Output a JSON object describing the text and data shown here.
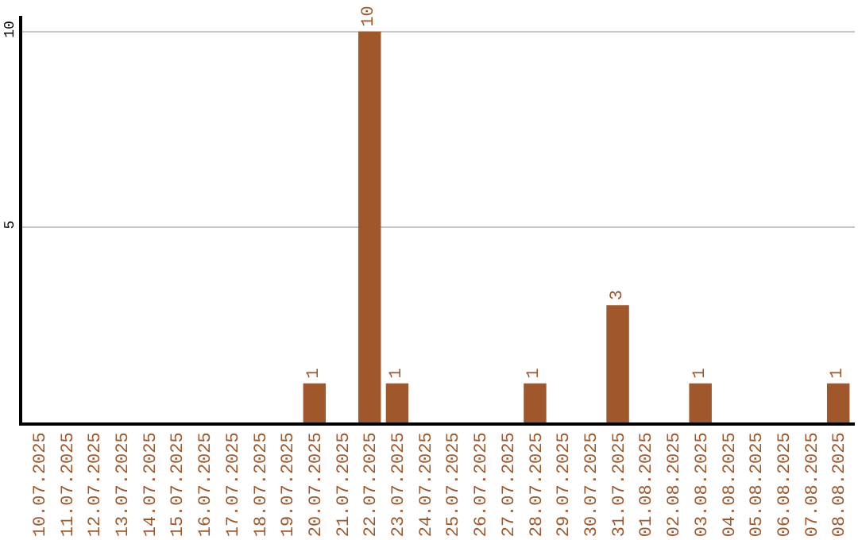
{
  "chart_data": {
    "type": "bar",
    "categories": [
      "10.07.2025",
      "11.07.2025",
      "12.07.2025",
      "13.07.2025",
      "14.07.2025",
      "15.07.2025",
      "16.07.2025",
      "17.07.2025",
      "18.07.2025",
      "19.07.2025",
      "20.07.2025",
      "21.07.2025",
      "22.07.2025",
      "23.07.2025",
      "24.07.2025",
      "25.07.2025",
      "26.07.2025",
      "27.07.2025",
      "28.07.2025",
      "29.07.2025",
      "30.07.2025",
      "31.07.2025",
      "01.08.2025",
      "02.08.2025",
      "03.08.2025",
      "04.08.2025",
      "05.08.2025",
      "06.08.2025",
      "07.08.2025",
      "08.08.2025"
    ],
    "values": [
      0,
      0,
      0,
      0,
      0,
      0,
      0,
      0,
      0,
      0,
      1,
      0,
      10,
      1,
      0,
      0,
      0,
      0,
      1,
      0,
      0,
      3,
      0,
      0,
      1,
      0,
      0,
      0,
      0,
      1
    ],
    "value_labels": [
      null,
      null,
      null,
      null,
      null,
      null,
      null,
      null,
      null,
      null,
      "1",
      null,
      "10",
      "1",
      null,
      null,
      null,
      null,
      "1",
      null,
      null,
      "3",
      null,
      null,
      "1",
      null,
      null,
      null,
      null,
      "1"
    ],
    "color": "#a0582a",
    "ylim": [
      0,
      10.4
    ],
    "yticks": [
      5,
      10
    ],
    "grid": "y",
    "legend": false
  }
}
